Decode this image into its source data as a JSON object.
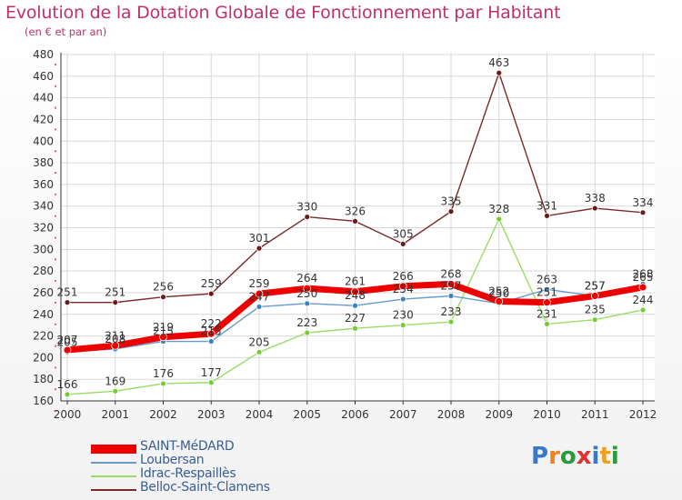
{
  "title": "Evolution de la Dotation Globale de Fonctionnement par Habitant",
  "subtitle": "(en € et par an)",
  "logo": {
    "text": "Proxiti",
    "letters": [
      {
        "ch": "P",
        "color": "#3a78c8"
      },
      {
        "ch": "r",
        "color": "#f08020"
      },
      {
        "ch": "o",
        "color": "#2a9a3a"
      },
      {
        "ch": "x",
        "color": "#e03030"
      },
      {
        "ch": "i",
        "color": "#3a78c8"
      },
      {
        "ch": "t",
        "color": "#f0a020"
      },
      {
        "ch": "i",
        "color": "#2a9a3a"
      }
    ]
  },
  "chart_data": {
    "type": "line",
    "title": "Evolution de la Dotation Globale de Fonctionnement par Habitant",
    "subtitle": "(en € et par an)",
    "xlabel": "",
    "ylabel": "",
    "x": [
      "2000",
      "2001",
      "2002",
      "2003",
      "2004",
      "2005",
      "2006",
      "2007",
      "2008",
      "2009",
      "2010",
      "2011",
      "2012"
    ],
    "ylim": [
      160,
      480
    ],
    "yticks": [
      160,
      180,
      200,
      220,
      240,
      260,
      280,
      300,
      320,
      340,
      360,
      380,
      400,
      420,
      440,
      460,
      480
    ],
    "grid": true,
    "legend": "bottom-left",
    "series": [
      {
        "name": "SAINT-MéDARD",
        "color": "#ee0000",
        "marker": "#ee0000",
        "width": 7,
        "values": [
          207,
          211,
          219,
          222,
          259,
          264,
          261,
          266,
          268,
          252,
          251,
          257,
          265
        ]
      },
      {
        "name": "Loubersan",
        "color": "#6699cc",
        "marker": "#3b82c4",
        "width": 1.4,
        "values": [
          205,
          208,
          215,
          215,
          247,
          250,
          248,
          254,
          257,
          250,
          263,
          257,
          268
        ]
      },
      {
        "name": "Idrac-Respaillès",
        "color": "#99dd66",
        "marker": "#77cc33",
        "width": 1.4,
        "values": [
          166,
          169,
          176,
          177,
          205,
          223,
          227,
          230,
          233,
          328,
          231,
          235,
          244
        ]
      },
      {
        "name": "Belloc-Saint-Clamens",
        "color": "#7a2a2a",
        "marker": "#6a1a1a",
        "width": 1.4,
        "values": [
          251,
          251,
          256,
          259,
          301,
          330,
          326,
          305,
          335,
          463,
          331,
          338,
          334
        ]
      }
    ]
  }
}
